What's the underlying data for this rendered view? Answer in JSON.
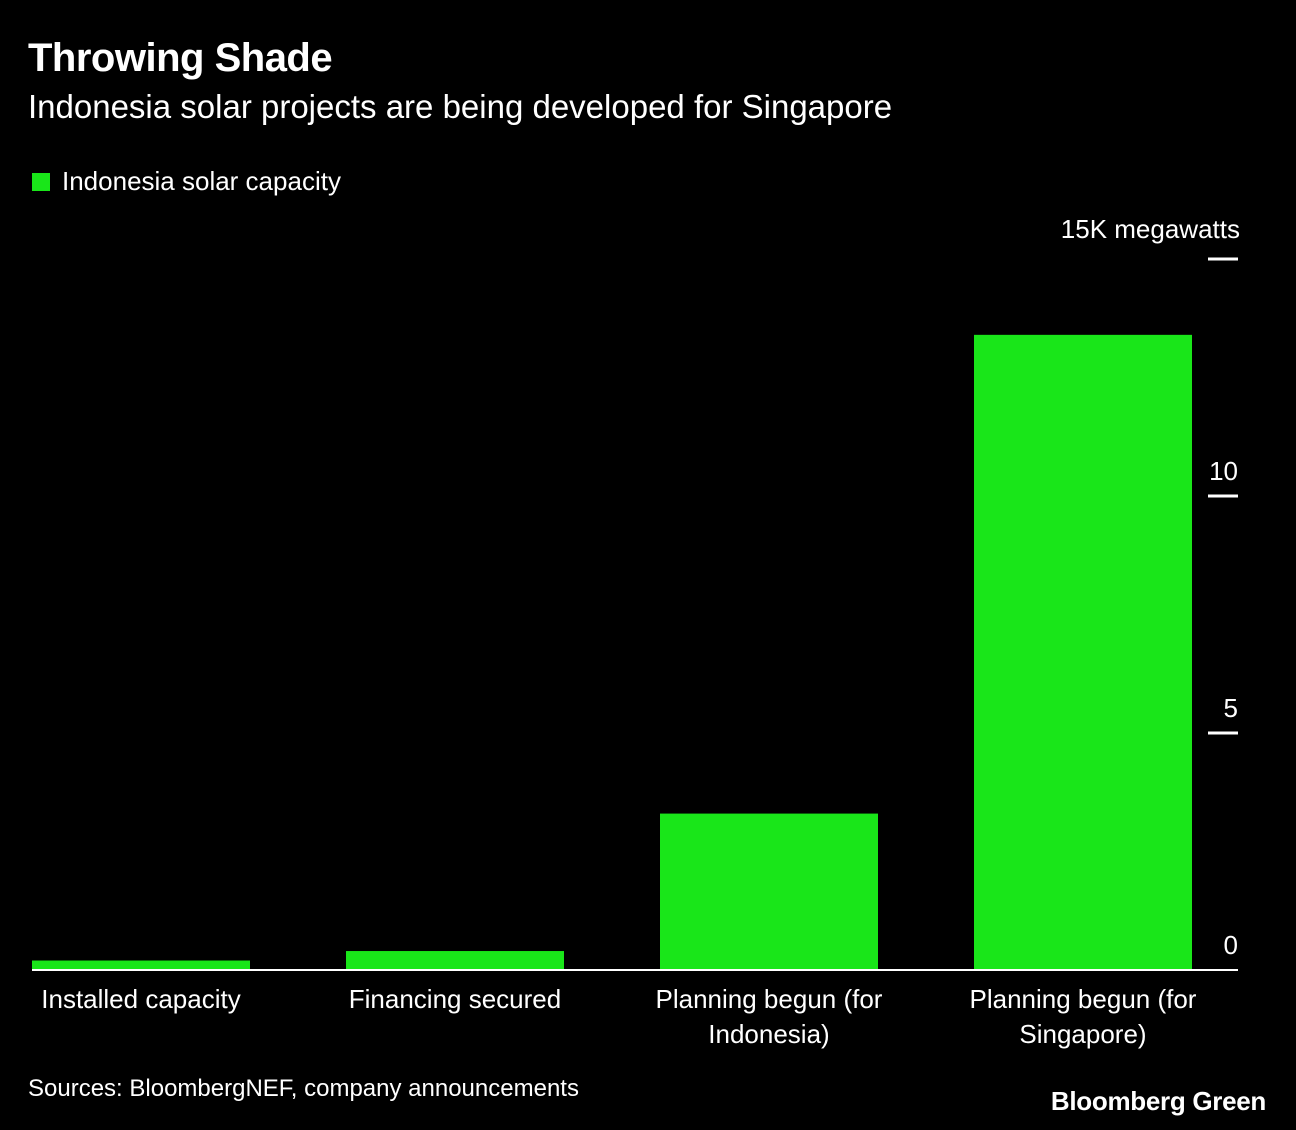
{
  "header": {
    "title": "Throwing Shade",
    "subtitle": "Indonesia solar projects are being developed for Singapore"
  },
  "legend": {
    "label": "Indonesia solar capacity"
  },
  "footer": {
    "source": "Sources: BloombergNEF, company announcements",
    "brand": "Bloomberg Green"
  },
  "colors": {
    "bar": "#19e619",
    "background": "#000000",
    "text": "#ffffff"
  },
  "chart_data": {
    "type": "bar",
    "title": "Throwing Shade",
    "subtitle": "Indonesia solar projects are being developed for Singapore",
    "categories": [
      [
        "Installed capacity"
      ],
      [
        "Financing secured"
      ],
      [
        "Planning begun (for",
        "Indonesia)"
      ],
      [
        "Planning begun (for",
        "Singapore)"
      ]
    ],
    "series": [
      {
        "name": "Indonesia solar capacity",
        "values": [
          0.2,
          0.4,
          3.3,
          13.4
        ]
      }
    ],
    "ylim": [
      0,
      15
    ],
    "yticks": [
      {
        "value": 0,
        "label": "0"
      },
      {
        "value": 5,
        "label": "5"
      },
      {
        "value": 10,
        "label": "10"
      },
      {
        "value": 15,
        "label": "15K megawatts"
      }
    ],
    "yaxis_position": "right",
    "xlabel": "",
    "ylabel": "megawatts"
  }
}
